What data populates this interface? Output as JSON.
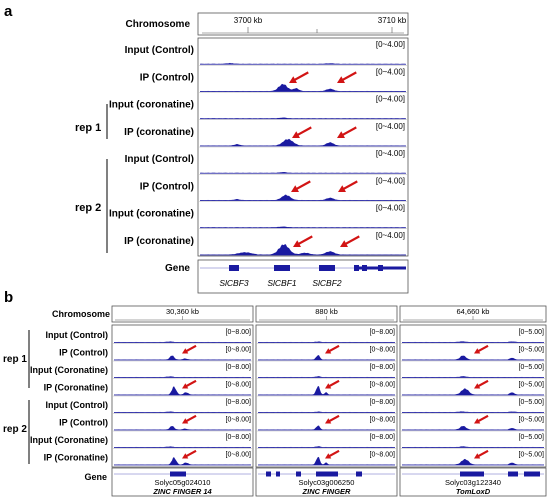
{
  "panel_a": {
    "letter": "a",
    "chromosome_label": "Chromosome",
    "coords": [
      "3700 kb",
      "3710 kb"
    ],
    "groups": [
      "rep 1",
      "rep 2"
    ],
    "tracks": [
      {
        "label": "Input (Control)",
        "range": "[0~4.00]",
        "arrows": 0
      },
      {
        "label": "IP (Control)",
        "range": "[0~4.00]",
        "arrows": 2
      },
      {
        "label": "Input (coronatine)",
        "range": "[0~4.00]",
        "arrows": 0
      },
      {
        "label": "IP (coronatine)",
        "range": "[0~4.00]",
        "arrows": 2
      },
      {
        "label": "Input (Control)",
        "range": "[0~4.00]",
        "arrows": 0
      },
      {
        "label": "IP (Control)",
        "range": "[0~4.00]",
        "arrows": 2
      },
      {
        "label": "Input (coronatine)",
        "range": "[0~4.00]",
        "arrows": 0
      },
      {
        "label": "IP (coronatine)",
        "range": "[0~4.00]",
        "arrows": 2
      }
    ],
    "gene_label": "Gene",
    "genes": [
      "SlCBF3",
      "SlCBF1",
      "SlCBF2"
    ]
  },
  "panel_b": {
    "letter": "b",
    "chromosome_label": "Chromosome",
    "gene_label": "Gene",
    "groups": [
      "rep 1",
      "rep 2"
    ],
    "track_labels": [
      "Input (Control)",
      "IP (Control)",
      "Input (Coronatine)",
      "IP (Coronatine)",
      "Input (Control)",
      "IP (Control)",
      "Input (Coronatine)",
      "IP (Coronatine)"
    ],
    "columns": [
      {
        "coord": "30,360 kb",
        "range": "[0~8.00]",
        "gene_id": "Solyc05g024010",
        "gene_name": "ZINC FINGER 14"
      },
      {
        "coord": "880 kb",
        "range": "[0~8.00]",
        "gene_id": "Solyc03g006250",
        "gene_name": "ZINC FINGER"
      },
      {
        "coord": "64,660 kb",
        "range": "[0~5.00]",
        "gene_id": "Solyc03g122340",
        "gene_name": "TomLoxD"
      }
    ]
  },
  "colors": {
    "signal": "#1a1aa0",
    "arrow": "#d21414"
  }
}
